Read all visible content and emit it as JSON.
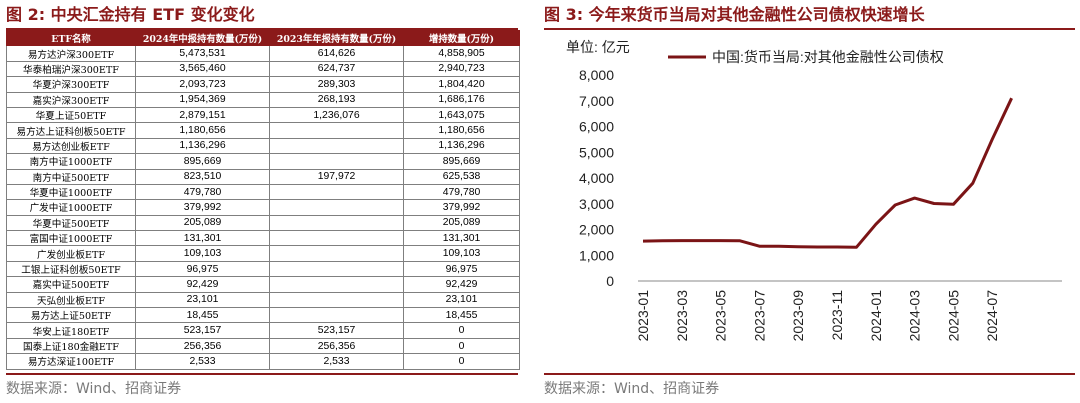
{
  "left_panel": {
    "title": "图 2:  中央汇金持有 ETF 变化变化",
    "source": "数据来源：Wind、招商证券",
    "table": {
      "headers": [
        "ETF名称",
        "2024年中报持有数量(万份)",
        "2023年年报持有数量(万份)",
        "增持数量(万份)"
      ],
      "rows": [
        [
          "易方达沪深300ETF",
          "5,473,531",
          "614,626",
          "4,858,905"
        ],
        [
          "华泰柏瑞沪深300ETF",
          "3,565,460",
          "624,737",
          "2,940,723"
        ],
        [
          "华夏沪深300ETF",
          "2,093,723",
          "289,303",
          "1,804,420"
        ],
        [
          "嘉实沪深300ETF",
          "1,954,369",
          "268,193",
          "1,686,176"
        ],
        [
          "华夏上证50ETF",
          "2,879,151",
          "1,236,076",
          "1,643,075"
        ],
        [
          "易方达上证科创板50ETF",
          "1,180,656",
          "",
          "1,180,656"
        ],
        [
          "易方达创业板ETF",
          "1,136,296",
          "",
          "1,136,296"
        ],
        [
          "南方中证1000ETF",
          "895,669",
          "",
          "895,669"
        ],
        [
          "南方中证500ETF",
          "823,510",
          "197,972",
          "625,538"
        ],
        [
          "华夏中证1000ETF",
          "479,780",
          "",
          "479,780"
        ],
        [
          "广发中证1000ETF",
          "379,992",
          "",
          "379,992"
        ],
        [
          "华夏中证500ETF",
          "205,089",
          "",
          "205,089"
        ],
        [
          "富国中证1000ETF",
          "131,301",
          "",
          "131,301"
        ],
        [
          "广发创业板ETF",
          "109,103",
          "",
          "109,103"
        ],
        [
          "工银上证科创板50ETF",
          "96,975",
          "",
          "96,975"
        ],
        [
          "嘉实中证500ETF",
          "92,429",
          "",
          "92,429"
        ],
        [
          "天弘创业板ETF",
          "23,101",
          "",
          "23,101"
        ],
        [
          "易方达上证50ETF",
          "18,455",
          "",
          "18,455"
        ],
        [
          "华安上证180ETF",
          "523,157",
          "523,157",
          "0"
        ],
        [
          "国泰上证180金融ETF",
          "256,356",
          "256,356",
          "0"
        ],
        [
          "易方达深证100ETF",
          "2,533",
          "2,533",
          "0"
        ]
      ]
    }
  },
  "right_panel": {
    "title": "图 3:  今年来货币当局对其他金融性公司债权快速增长",
    "source": "数据来源：Wind、招商证券"
  },
  "chart_data": {
    "type": "line",
    "title": "",
    "unit_label": "单位:  亿元",
    "xlabel": "",
    "ylabel": "",
    "ylim": [
      0,
      8000
    ],
    "yticks": [
      0,
      1000,
      2000,
      3000,
      4000,
      5000,
      6000,
      7000,
      8000
    ],
    "ytick_labels": [
      "0",
      "1,000",
      "2,000",
      "3,000",
      "4,000",
      "5,000",
      "6,000",
      "7,000",
      "8,000"
    ],
    "x": [
      "2023-01",
      "2023-02",
      "2023-03",
      "2023-04",
      "2023-05",
      "2023-06",
      "2023-07",
      "2023-08",
      "2023-09",
      "2023-10",
      "2023-11",
      "2023-12",
      "2024-01",
      "2024-02",
      "2024-03",
      "2024-04",
      "2024-05",
      "2024-06",
      "2024-07",
      "2024-08"
    ],
    "xtick_labels": [
      "2023-01",
      "2023-03",
      "2023-05",
      "2023-07",
      "2023-09",
      "2023-11",
      "2024-01",
      "2024-03",
      "2024-05",
      "2024-07"
    ],
    "grid": false,
    "legend_position": "top",
    "series": [
      {
        "name": "中国:货币当局:对其他金融性公司债权",
        "color": "#7B1416",
        "values": [
          1550,
          1560,
          1570,
          1570,
          1570,
          1560,
          1350,
          1350,
          1330,
          1320,
          1320,
          1310,
          2200,
          2950,
          3220,
          3010,
          2980,
          3800,
          5500,
          7100
        ]
      }
    ]
  }
}
